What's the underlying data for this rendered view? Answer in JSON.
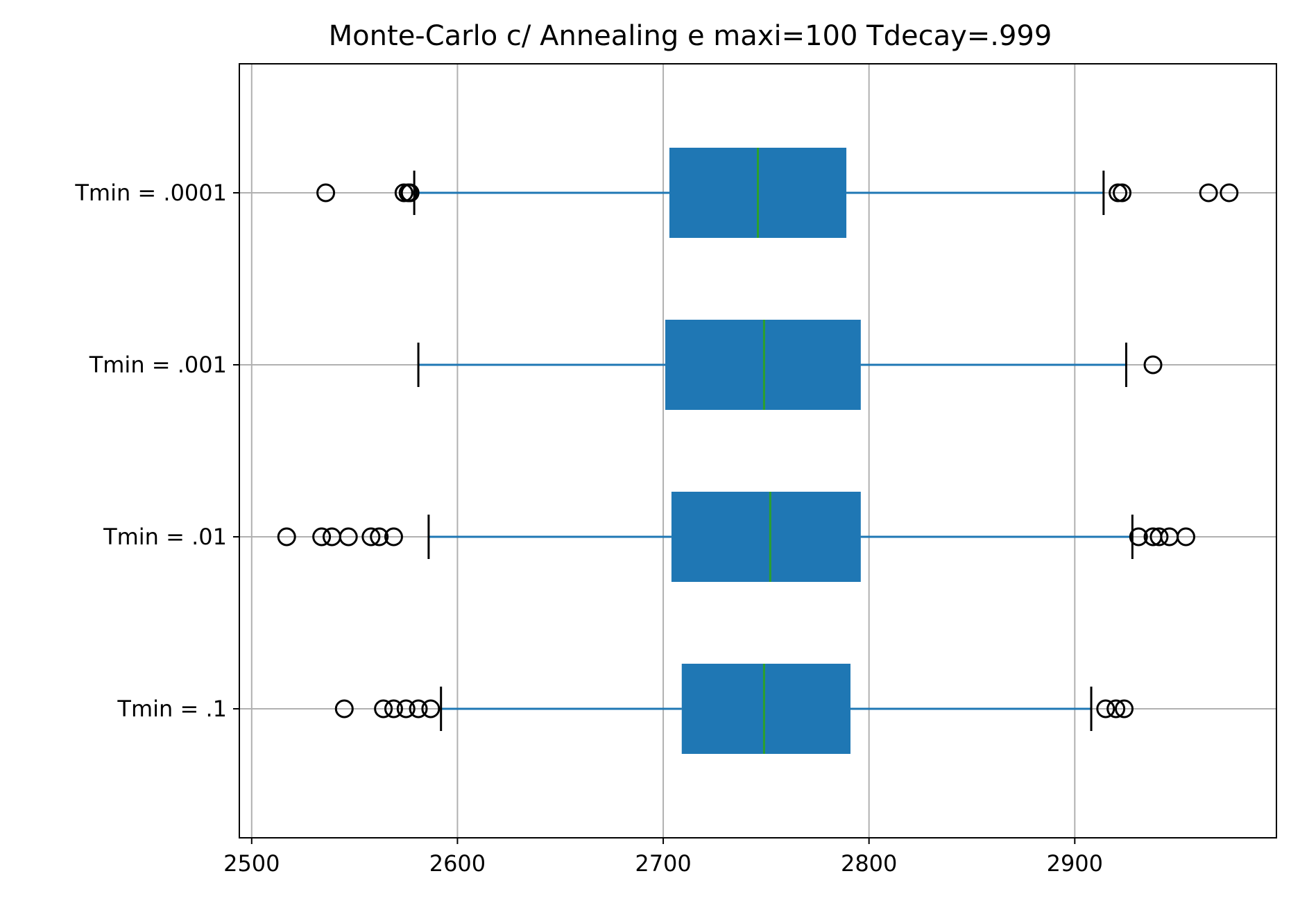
{
  "chart_data": {
    "type": "box",
    "orientation": "horizontal",
    "title": "Monte-Carlo c/ Annealing e maxi=100 Tdecay=.999",
    "xlabel": "",
    "ylabel": "",
    "xlim": [
      2494,
      2998
    ],
    "x_ticks": [
      2500,
      2600,
      2700,
      2800,
      2900
    ],
    "x_tick_labels": [
      "2500",
      "2600",
      "2700",
      "2800",
      "2900"
    ],
    "grid": true,
    "colors": {
      "box": "#1f77b4",
      "whisker": "#1f77b4",
      "median": "#2ca02c",
      "caps": "#000000",
      "fliers": "#000000"
    },
    "categories": [
      "Tmin = .1",
      "Tmin = .01",
      "Tmin = .001",
      "Tmin = .0001"
    ],
    "boxes": [
      {
        "label": "Tmin = .1",
        "whislo": 2592,
        "q1": 2709,
        "median": 2749,
        "q3": 2791,
        "whishi": 2908,
        "fliers": [
          2545,
          2564,
          2569,
          2575,
          2581,
          2587,
          2915,
          2920,
          2924
        ]
      },
      {
        "label": "Tmin = .01",
        "whislo": 2586,
        "q1": 2704,
        "median": 2752,
        "q3": 2796,
        "whishi": 2928,
        "fliers": [
          2517,
          2534,
          2539,
          2547,
          2558,
          2562,
          2569,
          2931,
          2938,
          2941,
          2946,
          2954
        ]
      },
      {
        "label": "Tmin = .001",
        "whislo": 2581,
        "q1": 2701,
        "median": 2749,
        "q3": 2796,
        "whishi": 2925,
        "fliers": [
          2938
        ]
      },
      {
        "label": "Tmin = .0001",
        "whislo": 2579,
        "q1": 2703,
        "median": 2746,
        "q3": 2789,
        "whishi": 2914,
        "fliers": [
          2536,
          2574,
          2576,
          2577,
          2921,
          2923,
          2965,
          2975
        ]
      }
    ]
  }
}
